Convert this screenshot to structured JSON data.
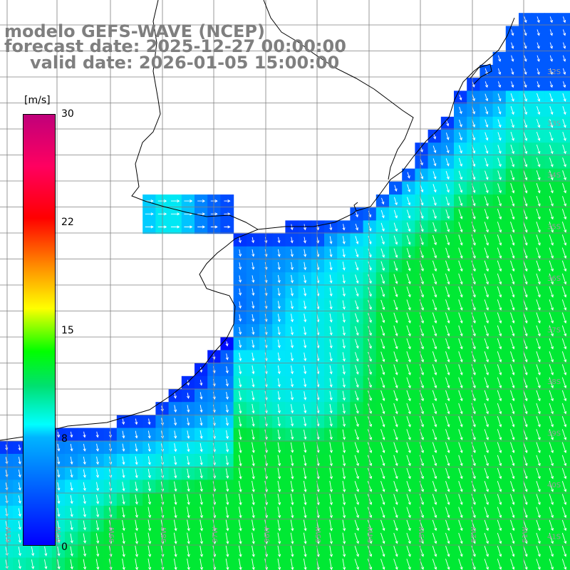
{
  "title": {
    "model": "modelo GEFS-WAVE (NCEP)",
    "forecast": "forecast date: 2025-12-27 00:00:00",
    "valid": "valid date: 2026-01-05 15:00:00"
  },
  "colorbar": {
    "unit": "[m/s]",
    "ticks": [
      "30",
      "22",
      "15",
      "8",
      "0"
    ],
    "colors": [
      "#0000ff",
      "#00b4ff",
      "#00ffff",
      "#00e070",
      "#00ff00",
      "#ffff00",
      "#ff9600",
      "#ff0000",
      "#c0007a"
    ]
  },
  "latitude_labels": [
    "32S",
    "33S",
    "34S",
    "35S",
    "36S",
    "37S",
    "38S",
    "39S",
    "40S",
    "41S"
  ],
  "longitude_labels": [
    "61W",
    "60W",
    "59W",
    "58W",
    "57W",
    "56W",
    "55W",
    "54W",
    "53W",
    "52W",
    "51W"
  ],
  "map_data": {
    "field": "wind speed",
    "units": "m/s",
    "vmin": 0,
    "vmax": 30,
    "land_color": "#ffffff",
    "coastline_color": "#000000",
    "grid_color": "#808080",
    "vector_color": "#ffffff"
  }
}
